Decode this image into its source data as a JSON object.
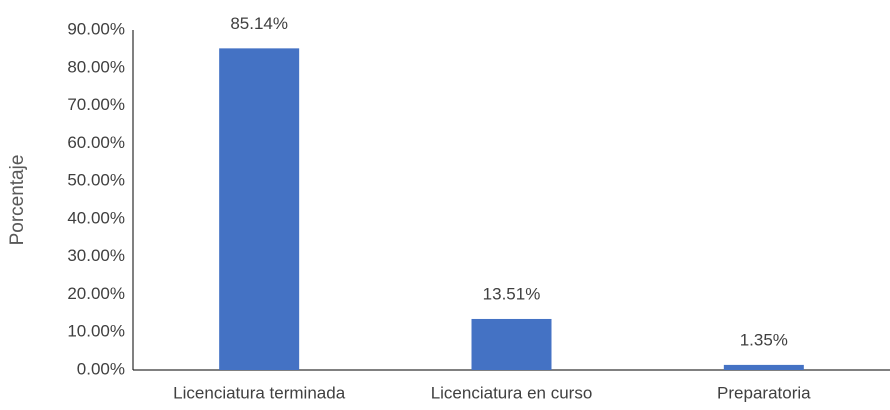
{
  "chart_data": {
    "type": "bar",
    "ylabel": "Porcentaje",
    "categories": [
      "Licenciatura terminada",
      "Licenciatura en curso",
      "Preparatoria"
    ],
    "values": [
      85.14,
      13.51,
      1.35
    ],
    "value_labels": [
      "85.14%",
      "13.51%",
      "1.35%"
    ],
    "color": "#4472c4",
    "ylim": [
      0,
      90
    ],
    "yticks": [
      {
        "value": 0,
        "label": "0.00%"
      },
      {
        "value": 10,
        "label": "10.00%"
      },
      {
        "value": 20,
        "label": "20.00%"
      },
      {
        "value": 30,
        "label": "30.00%"
      },
      {
        "value": 40,
        "label": "40.00%"
      },
      {
        "value": 50,
        "label": "50.00%"
      },
      {
        "value": 60,
        "label": "60.00%"
      },
      {
        "value": 70,
        "label": "70.00%"
      },
      {
        "value": 80,
        "label": "80.00%"
      },
      {
        "value": 90,
        "label": "90.00%"
      }
    ],
    "grid": false
  }
}
